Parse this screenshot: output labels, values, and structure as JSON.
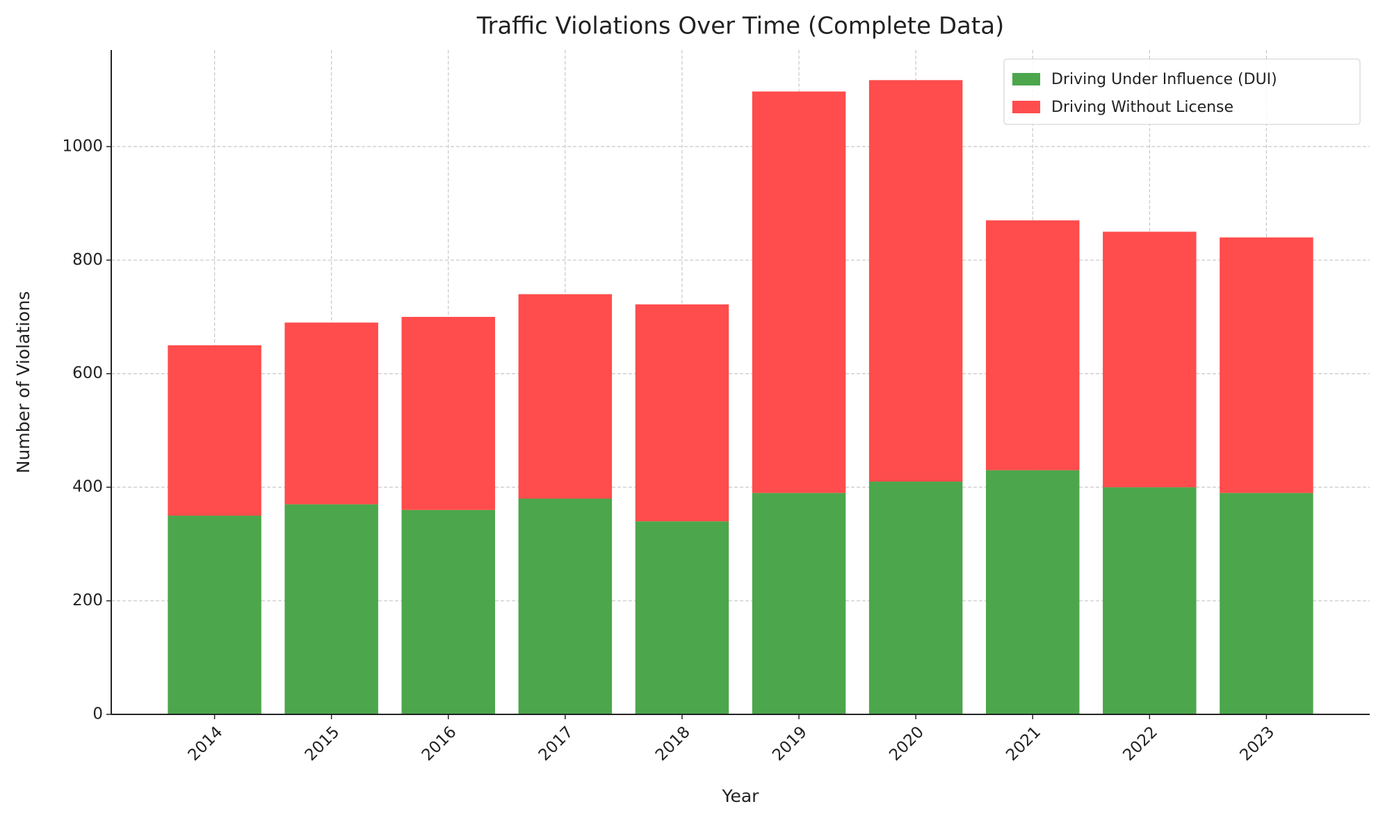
{
  "chart_data": {
    "type": "stacked_bar",
    "title": "Traffic Violations Over Time (Complete Data)",
    "x_label": "Year",
    "y_label": "Number of Violations",
    "categories": [
      "2014",
      "2015",
      "2016",
      "2017",
      "2018",
      "2019",
      "2020",
      "2021",
      "2022",
      "2023"
    ],
    "series": [
      {
        "name": "Driving Under Influence (DUI)",
        "color": "#4ca64c",
        "values": [
          350,
          370,
          360,
          380,
          340,
          390,
          410,
          430,
          400,
          390
        ]
      },
      {
        "name": "Driving Without License",
        "color": "#ff4c4c",
        "values": [
          300,
          320,
          340,
          360,
          382,
          707,
          707,
          440,
          450,
          450
        ]
      }
    ],
    "ylim": [
      0,
      1170
    ],
    "yticks": [
      0,
      200,
      400,
      600,
      800,
      1000
    ],
    "grid": true,
    "legend": "upper right"
  }
}
